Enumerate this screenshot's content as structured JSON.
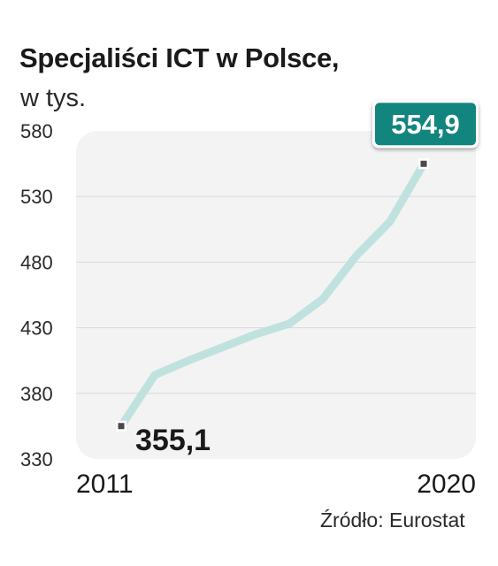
{
  "header": {
    "title": "Specjaliści ICT w Polsce,",
    "subtitle": "w tys."
  },
  "footer": {
    "source": "Źródło: Eurostat"
  },
  "colors": {
    "line": "#c0e2df",
    "marker": "#4a4a4a",
    "highlight_box": "#13857f",
    "plot_background": "#f3f3f3"
  },
  "chart_data": {
    "type": "line",
    "title": "Specjaliści ICT w Polsce,",
    "subtitle": "w tys.",
    "x": [
      2011,
      2012,
      2013,
      2014,
      2015,
      2016,
      2017,
      2018,
      2019,
      2020
    ],
    "x_tick_labels": [
      "2011",
      "2020"
    ],
    "series": [
      {
        "values": [
          355.1,
          394,
          405,
          415,
          425,
          433,
          452,
          485,
          511,
          554.9
        ]
      }
    ],
    "ylim": [
      330,
      580
    ],
    "y_ticks": [
      330,
      380,
      430,
      480,
      530,
      580
    ],
    "y_tick_labels": [
      "330",
      "380",
      "430",
      "480",
      "530",
      "580"
    ],
    "annotations": [
      {
        "x": 2011,
        "y": 355.1,
        "text": "355,1"
      },
      {
        "x": 2020,
        "y": 554.9,
        "text": "554,9"
      }
    ],
    "grid": true
  }
}
